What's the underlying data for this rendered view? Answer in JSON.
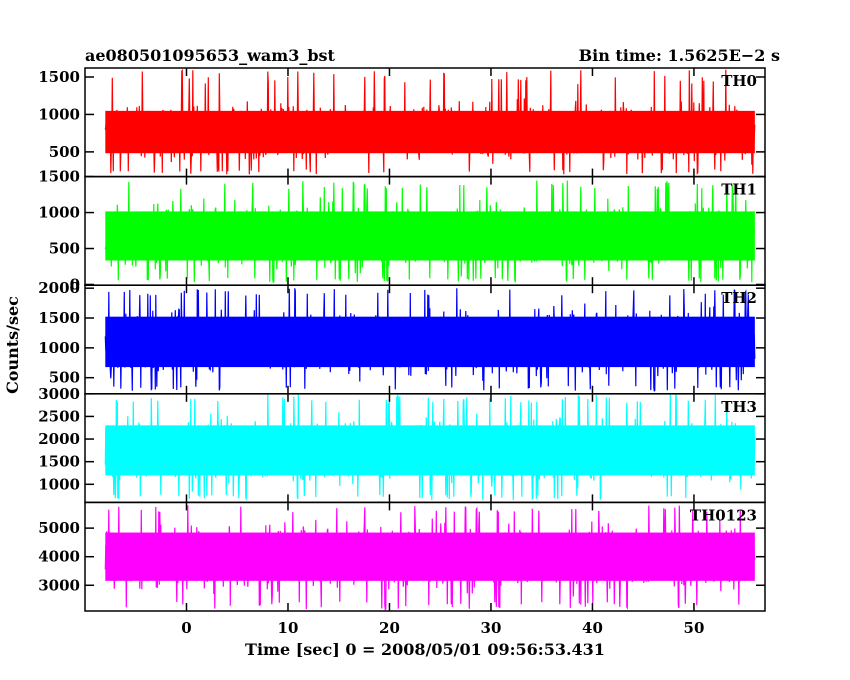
{
  "chart_data": {
    "type": "line",
    "title_left": "ae080501095653_wam3_bst",
    "title_right": "Bin time: 1.5625E−2 s",
    "ylabel": "Counts/sec",
    "xlabel": "Time [sec] 0 = 2008/05/01 09:56:53.431",
    "xlim": [
      -10,
      57
    ],
    "x_data_range": [
      -8,
      56
    ],
    "xticks": [
      "0",
      "10",
      "20",
      "30",
      "40",
      "50"
    ],
    "xtick_values": [
      0,
      10,
      20,
      30,
      40,
      50
    ],
    "panels": [
      {
        "name": "TH0",
        "color": "#ff0000",
        "ylim": [
          170,
          1620
        ],
        "yticks": [
          500,
          1000,
          1500
        ],
        "ytick_labels": [
          "500",
          "1000",
          "1500"
        ],
        "typical_range": [
          330,
          1200
        ],
        "max": 1600,
        "min": 200
      },
      {
        "name": "TH1",
        "color": "#00ff00",
        "ylim": [
          -10,
          1500
        ],
        "yticks": [
          0,
          500,
          1000,
          1500
        ],
        "ytick_labels": [
          "0",
          "500",
          "1000",
          "1500"
        ],
        "typical_range": [
          150,
          1200
        ],
        "max": 1450,
        "min": 30
      },
      {
        "name": "TH2",
        "color": "#0000ff",
        "ylim": [
          230,
          2050
        ],
        "yticks": [
          500,
          1000,
          1500,
          2000
        ],
        "ytick_labels": [
          "500",
          "1000",
          "1500",
          "2000"
        ],
        "typical_range": [
          450,
          1750
        ],
        "max": 2000,
        "min": 280
      },
      {
        "name": "TH3",
        "color": "#00ffff",
        "ylim": [
          600,
          3000
        ],
        "yticks": [
          1000,
          1500,
          2000,
          2500,
          3000
        ],
        "ytick_labels": [
          "1000",
          "1500",
          "2000",
          "2500",
          "3000"
        ],
        "typical_range": [
          900,
          2600
        ],
        "max": 3000,
        "min": 650
      },
      {
        "name": "TH0123",
        "color": "#ff00ff",
        "ylim": [
          2100,
          5900
        ],
        "yticks": [
          3000,
          4000,
          5000
        ],
        "ytick_labels": [
          "3000",
          "4000",
          "5000"
        ],
        "typical_range": [
          2700,
          5300
        ],
        "max": 5800,
        "min": 2150
      }
    ]
  }
}
